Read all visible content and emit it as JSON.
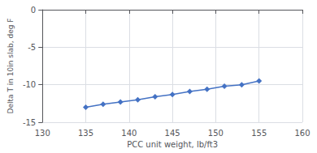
{
  "chart_data": {
    "type": "line",
    "x": [
      135,
      137,
      139,
      141,
      143,
      145,
      147,
      149,
      151,
      153,
      155
    ],
    "values": [
      -13.0,
      -12.6,
      -12.3,
      -12.0,
      -11.6,
      -11.3,
      -10.9,
      -10.6,
      -10.2,
      -10.0,
      -9.5
    ],
    "xlim": [
      130,
      160
    ],
    "ylim": [
      -15,
      0
    ],
    "xticks": [
      130,
      135,
      140,
      145,
      150,
      155,
      160
    ],
    "yticks": [
      -15,
      -10,
      -5,
      0
    ],
    "xlabel": "PCC unit weight, lb/ft3",
    "ylabel": "Delta T in 10in slab, deg F",
    "color": "#4472C4",
    "marker": "diamond",
    "grid": true
  }
}
